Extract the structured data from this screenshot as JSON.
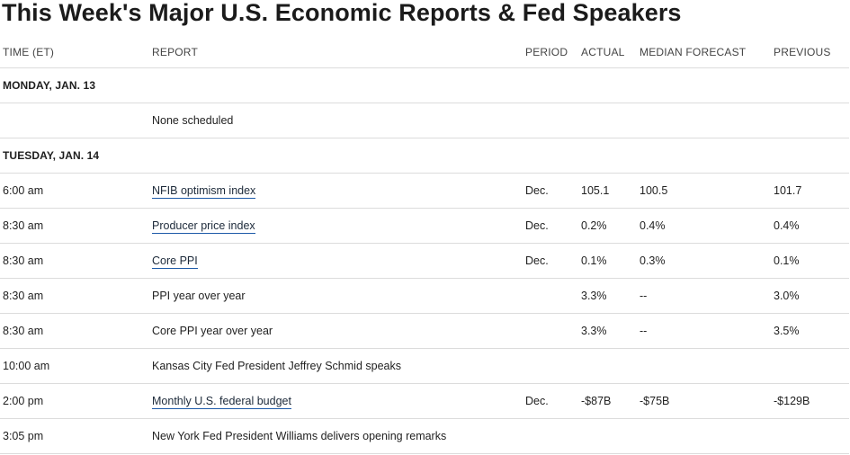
{
  "title": "This Week's Major U.S. Economic Reports & Fed Speakers",
  "columns": {
    "time": "TIME (ET)",
    "report": "REPORT",
    "period": "PERIOD",
    "actual": "ACTUAL",
    "median": "MEDIAN FORECAST",
    "previous": "PREVIOUS"
  },
  "days": [
    {
      "label": "MONDAY, JAN. 13"
    },
    {
      "label": "TUESDAY, JAN. 14"
    }
  ],
  "monday_rows": [
    {
      "time": "",
      "report": "None scheduled",
      "period": "",
      "actual": "",
      "median": "",
      "previous": ""
    }
  ],
  "tuesday_rows": [
    {
      "time": "6:00 am",
      "report": "NFIB optimism index",
      "period": "Dec.",
      "actual": "105.1",
      "median": "100.5",
      "previous": "101.7",
      "linked": true
    },
    {
      "time": "8:30 am",
      "report": "Producer price index",
      "period": "Dec.",
      "actual": "0.2%",
      "median": "0.4%",
      "previous": "0.4%",
      "linked": true
    },
    {
      "time": "8:30 am",
      "report": "Core PPI",
      "period": "Dec.",
      "actual": "0.1%",
      "median": "0.3%",
      "previous": "0.1%",
      "linked": true
    },
    {
      "time": "8:30 am",
      "report": "PPI year over year",
      "period": "",
      "actual": "3.3%",
      "median": "--",
      "previous": "3.0%",
      "linked": false
    },
    {
      "time": "8:30 am",
      "report": "Core PPI year over year",
      "period": "",
      "actual": "3.3%",
      "median": "--",
      "previous": "3.5%",
      "linked": false
    },
    {
      "time": "10:00 am",
      "report": "Kansas City Fed President Jeffrey Schmid speaks",
      "period": "",
      "actual": "",
      "median": "",
      "previous": "",
      "linked": false
    },
    {
      "time": "2:00 pm",
      "report": "Monthly U.S. federal budget",
      "period": "Dec.",
      "actual": "-$87B",
      "median": "-$75B",
      "previous": "-$129B",
      "linked": true
    },
    {
      "time": "3:05 pm",
      "report": "New York Fed President Williams delivers opening remarks",
      "period": "",
      "actual": "",
      "median": "",
      "previous": "",
      "linked": false
    }
  ],
  "colors": {
    "text": "#222222",
    "rule": "#dcdcdc",
    "link_underline": "#1d5aa8"
  }
}
